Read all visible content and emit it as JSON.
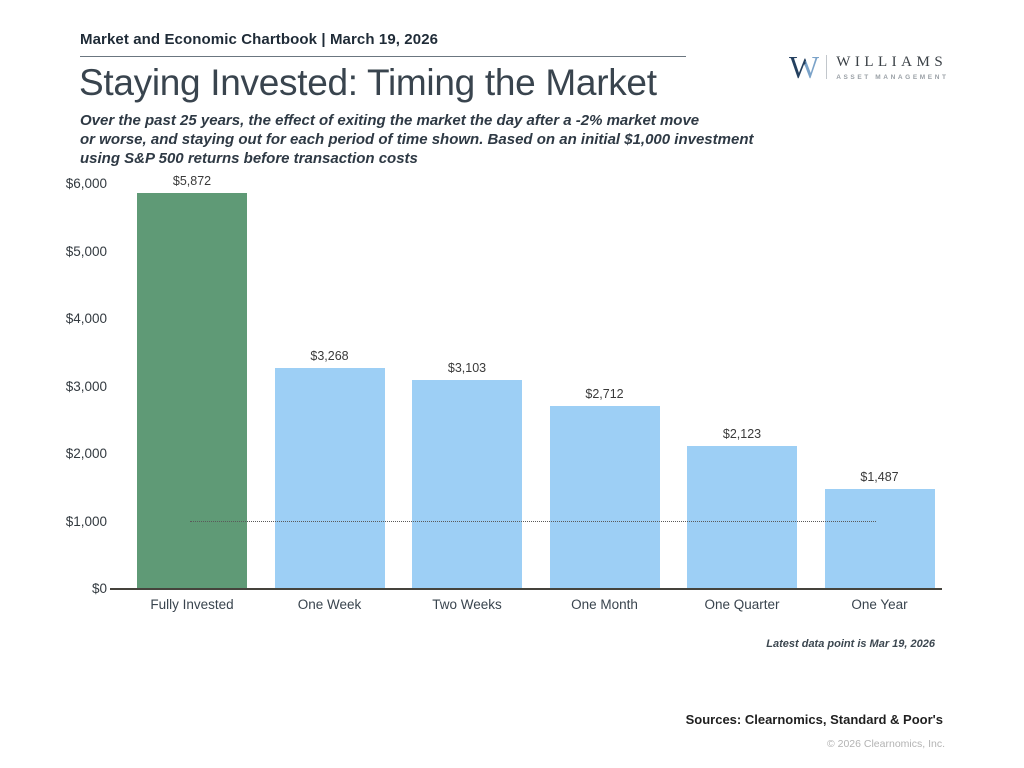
{
  "header": {
    "chartbook_title": "Market and Economic Chartbook | March 19, 2026"
  },
  "logo": {
    "monogram": "W",
    "name": "WILLIAMS",
    "tagline": "ASSET MANAGEMENT"
  },
  "title": "Staying Invested: Timing the Market",
  "subtitle": "Over the past 25 years, the effect of exiting the market the day after a -2% market move\nor worse, and staying out for each period of time shown. Based on an initial $1,000 investment\nusing S&P 500 returns before transaction costs",
  "chart_data": {
    "type": "bar",
    "title": "Staying Invested: Timing the Market",
    "categories": [
      "Fully Invested",
      "One Week",
      "Two Weeks",
      "One Month",
      "One Quarter",
      "One Year"
    ],
    "values": [
      5872,
      3268,
      3103,
      2712,
      2123,
      1487
    ],
    "value_labels": [
      "$5,872",
      "$3,268",
      "$3,103",
      "$2,712",
      "$2,123",
      "$1,487"
    ],
    "bar_colors": [
      "#5f9a76",
      "#9dcff5",
      "#9dcff5",
      "#9dcff5",
      "#9dcff5",
      "#9dcff5"
    ],
    "highlight_color": "#5f9a76",
    "default_bar_color": "#9dcff5",
    "xlabel": "",
    "ylabel": "",
    "ylim": [
      0,
      6000
    ],
    "y_ticks": [
      {
        "value": 6000,
        "label": "$6,000"
      },
      {
        "value": 5000,
        "label": "$5,000"
      },
      {
        "value": 4000,
        "label": "$4,000"
      },
      {
        "value": 3000,
        "label": "$3,000"
      },
      {
        "value": 2000,
        "label": "$2,000"
      },
      {
        "value": 1000,
        "label": "$1,000"
      },
      {
        "value": 0,
        "label": "$0"
      }
    ],
    "reference_line": {
      "value": 1000,
      "style": "dotted",
      "color": "#5a5a5a"
    },
    "grid": false,
    "legend": "none"
  },
  "footnote": "Latest data point is Mar 19, 2026",
  "sources": "Sources: Clearnomics, Standard & Poor's",
  "copyright": "© 2026 Clearnomics, Inc."
}
